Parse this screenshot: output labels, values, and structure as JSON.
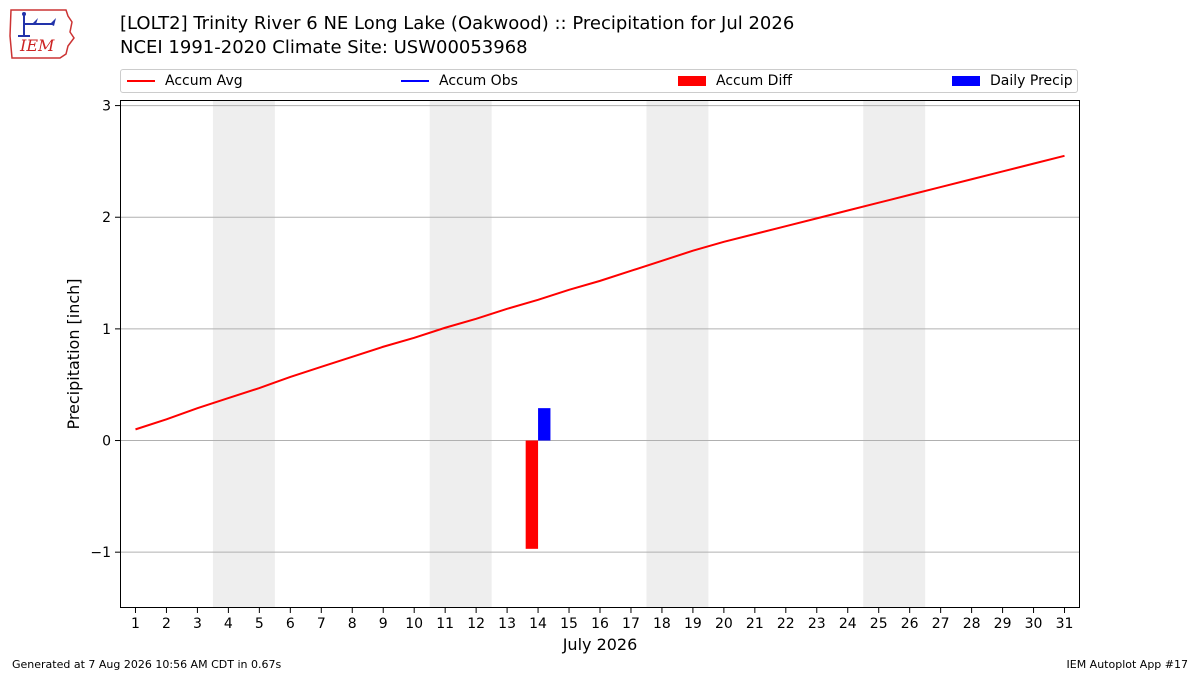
{
  "logo": {
    "text": "IEM"
  },
  "title": {
    "line1": "[LOLT2] Trinity River 6 NE Long Lake (Oakwood) :: Precipitation for Jul 2026",
    "line2": "NCEI 1991-2020 Climate Site: USW00053968"
  },
  "legend": {
    "items": [
      {
        "label": "Accum Avg",
        "kind": "line",
        "color": "#ff0000"
      },
      {
        "label": "Accum Obs",
        "kind": "line",
        "color": "#0000ff"
      },
      {
        "label": "Accum Diff",
        "kind": "box",
        "color": "#ff0000"
      },
      {
        "label": "Daily Precip",
        "kind": "box",
        "color": "#0000ff"
      }
    ]
  },
  "footer": {
    "left": "Generated at 7 Aug 2026 10:56 AM CDT in 0.67s",
    "right": "IEM Autoplot App #17"
  },
  "chart_data": {
    "type": "bar",
    "xlabel": "July 2026",
    "ylabel": "Precipitation [inch]",
    "xlim": [
      0.5,
      31.5
    ],
    "ylim": [
      -1.5,
      3.05
    ],
    "yticks": [
      -1,
      0,
      1,
      2,
      3
    ],
    "ytick_labels": [
      "−1",
      "0",
      "1",
      "2",
      "3"
    ],
    "xticks": [
      1,
      2,
      3,
      4,
      5,
      6,
      7,
      8,
      9,
      10,
      11,
      12,
      13,
      14,
      15,
      16,
      17,
      18,
      19,
      20,
      21,
      22,
      23,
      24,
      25,
      26,
      27,
      28,
      29,
      30,
      31
    ],
    "grid": "horizontal",
    "weekend_shading": [
      [
        3.5,
        5.5
      ],
      [
        10.5,
        12.5
      ],
      [
        17.5,
        19.5
      ],
      [
        24.5,
        26.5
      ]
    ],
    "series": [
      {
        "name": "Accum Avg",
        "kind": "line",
        "color": "#ff0000",
        "x": [
          1,
          2,
          3,
          4,
          5,
          6,
          7,
          8,
          9,
          10,
          11,
          12,
          13,
          14,
          15,
          16,
          17,
          18,
          19,
          20,
          21,
          22,
          23,
          24,
          25,
          26,
          27,
          28,
          29,
          30,
          31
        ],
        "values": [
          0.1,
          0.19,
          0.29,
          0.38,
          0.47,
          0.57,
          0.66,
          0.75,
          0.84,
          0.92,
          1.01,
          1.09,
          1.18,
          1.26,
          1.35,
          1.43,
          1.52,
          1.61,
          1.7,
          1.78,
          1.85,
          1.92,
          1.99,
          2.06,
          2.13,
          2.2,
          2.27,
          2.34,
          2.41,
          2.48,
          2.55
        ]
      },
      {
        "name": "Accum Diff",
        "kind": "bar",
        "color": "#ff0000",
        "x": [
          14
        ],
        "values": [
          -0.97
        ]
      },
      {
        "name": "Daily Precip",
        "kind": "bar",
        "color": "#0000ff",
        "x": [
          14
        ],
        "values": [
          0.29
        ]
      }
    ]
  }
}
